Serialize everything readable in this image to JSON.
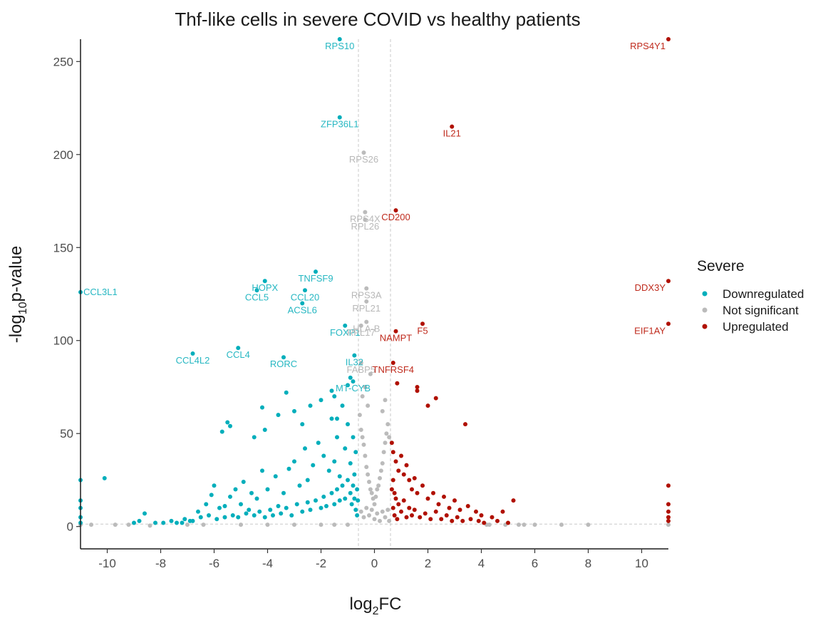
{
  "chart_data": {
    "type": "scatter",
    "title": "Thf-like cells in severe COVID vs healthy patients",
    "xlabel_base": "log",
    "xlabel_sub": "2",
    "xlabel_tail": "FC",
    "ylabel_head": "-log",
    "ylabel_sub": "10",
    "ylabel_tail": "p-value",
    "xlim": [
      -11,
      11
    ],
    "ylim": [
      -12,
      262
    ],
    "x_ticks": [
      -10,
      -8,
      -6,
      -4,
      -2,
      0,
      2,
      4,
      6,
      8,
      10
    ],
    "y_ticks": [
      0,
      50,
      100,
      150,
      200,
      250
    ],
    "fc_threshold": [
      -0.6,
      0.6
    ],
    "p_threshold": 1.3,
    "legend": {
      "title": "Severe",
      "entries": [
        {
          "name": "Downregulated",
          "color": "#00aebb"
        },
        {
          "name": "Not significant",
          "color": "#bbbbbb"
        },
        {
          "name": "Upregulated",
          "color": "#b01000"
        }
      ]
    },
    "colors": {
      "Downregulated": "#00aebb",
      "Not significant": "#bbbbbb",
      "Upregulated": "#b01000",
      "down_label": "#26b7c2",
      "ns_label": "#b8b8b8",
      "up_label": "#bf2a1c"
    },
    "labeled_genes": [
      {
        "gene": "RPS10",
        "x": -1.3,
        "y": 262,
        "group": "Downregulated"
      },
      {
        "gene": "ZFP36L1",
        "x": -1.3,
        "y": 220,
        "group": "Downregulated"
      },
      {
        "gene": "TNFSF9",
        "x": -2.2,
        "y": 137,
        "group": "Downregulated"
      },
      {
        "gene": "CCL5",
        "x": -4.4,
        "y": 127,
        "group": "Downregulated"
      },
      {
        "gene": "CCL20",
        "x": -2.6,
        "y": 127,
        "group": "Downregulated"
      },
      {
        "gene": "HOPX",
        "x": -4.1,
        "y": 132,
        "group": "Downregulated"
      },
      {
        "gene": "CCL3L1",
        "x": -11,
        "y": 126,
        "group": "Downregulated"
      },
      {
        "gene": "ACSL6",
        "x": -2.7,
        "y": 120,
        "group": "Downregulated"
      },
      {
        "gene": "FOXP1",
        "x": -1.1,
        "y": 108,
        "group": "Downregulated"
      },
      {
        "gene": "CCL4",
        "x": -5.1,
        "y": 96,
        "group": "Downregulated"
      },
      {
        "gene": "CCL4L2",
        "x": -6.8,
        "y": 93,
        "group": "Downregulated"
      },
      {
        "gene": "IL32",
        "x": -0.75,
        "y": 92,
        "group": "Downregulated"
      },
      {
        "gene": "RORC",
        "x": -3.4,
        "y": 91,
        "group": "Downregulated"
      },
      {
        "gene": "MT-CYB",
        "x": -0.8,
        "y": 78,
        "group": "Downregulated"
      },
      {
        "gene": "RPS26",
        "x": -0.4,
        "y": 201,
        "group": "Not significant"
      },
      {
        "gene": "RPS4X",
        "x": -0.35,
        "y": 169,
        "group": "Not significant"
      },
      {
        "gene": "RPL26",
        "x": -0.35,
        "y": 165,
        "group": "Not significant"
      },
      {
        "gene": "RPS3A",
        "x": -0.3,
        "y": 128,
        "group": "Not significant"
      },
      {
        "gene": "RPL21",
        "x": -0.3,
        "y": 121,
        "group": "Not significant"
      },
      {
        "gene": "HLA-B",
        "x": -0.3,
        "y": 110,
        "group": "Not significant"
      },
      {
        "gene": "RPL17",
        "x": -0.5,
        "y": 108,
        "group": "Not significant"
      },
      {
        "gene": "FABP5",
        "x": -0.5,
        "y": 88,
        "group": "Not significant"
      },
      {
        "gene": "RPS4Y1",
        "x": 11,
        "y": 262,
        "group": "Upregulated"
      },
      {
        "gene": "IL21",
        "x": 2.9,
        "y": 215,
        "group": "Upregulated"
      },
      {
        "gene": "CD200",
        "x": 0.8,
        "y": 170,
        "group": "Upregulated"
      },
      {
        "gene": "DDX3Y",
        "x": 11,
        "y": 132,
        "group": "Upregulated"
      },
      {
        "gene": "F5",
        "x": 1.8,
        "y": 109,
        "group": "Upregulated"
      },
      {
        "gene": "EIF1AY",
        "x": 11,
        "y": 109,
        "group": "Upregulated"
      },
      {
        "gene": "NAMPT",
        "x": 0.8,
        "y": 105,
        "group": "Upregulated"
      },
      {
        "gene": "TNFRSF4",
        "x": 0.7,
        "y": 88,
        "group": "Upregulated"
      }
    ],
    "points": {
      "Downregulated": [
        [
          -11,
          14
        ],
        [
          -11,
          10
        ],
        [
          -11,
          5
        ],
        [
          -11,
          25
        ],
        [
          -10.1,
          26
        ],
        [
          -8.8,
          3
        ],
        [
          -8.6,
          7
        ],
        [
          -8.2,
          2
        ],
        [
          -7.6,
          3
        ],
        [
          -7.1,
          4
        ],
        [
          -6.8,
          3
        ],
        [
          -6.6,
          8
        ],
        [
          -6.3,
          12
        ],
        [
          -6.1,
          17
        ],
        [
          -6.0,
          22
        ],
        [
          -5.8,
          10
        ],
        [
          -5.6,
          11
        ],
        [
          -5.4,
          16
        ],
        [
          -5.2,
          20
        ],
        [
          -5.0,
          12
        ],
        [
          -4.9,
          24
        ],
        [
          -4.6,
          18
        ],
        [
          -4.4,
          15
        ],
        [
          -4.2,
          30
        ],
        [
          -4.0,
          20
        ],
        [
          -3.7,
          27
        ],
        [
          -3.4,
          18
        ],
        [
          -3.2,
          31
        ],
        [
          -3.0,
          35
        ],
        [
          -2.8,
          22
        ],
        [
          -2.6,
          42
        ],
        [
          -2.5,
          25
        ],
        [
          -2.3,
          33
        ],
        [
          -2.1,
          45
        ],
        [
          -1.9,
          38
        ],
        [
          -1.7,
          30
        ],
        [
          -1.6,
          58
        ],
        [
          -1.5,
          35
        ],
        [
          -1.4,
          48
        ],
        [
          -1.3,
          27
        ],
        [
          -1.2,
          65
        ],
        [
          -1.1,
          42
        ],
        [
          -1.0,
          55
        ],
        [
          -0.9,
          34
        ],
        [
          -0.8,
          48
        ],
        [
          -0.75,
          28
        ],
        [
          -0.7,
          40
        ],
        [
          -0.65,
          20
        ],
        [
          -5.7,
          51
        ],
        [
          -5.5,
          56
        ],
        [
          -5.4,
          54
        ],
        [
          -4.5,
          48
        ],
        [
          -4.2,
          64
        ],
        [
          -4.1,
          52
        ],
        [
          -3.6,
          60
        ],
        [
          -3.3,
          72
        ],
        [
          -3.0,
          62
        ],
        [
          -2.7,
          55
        ],
        [
          -2.4,
          65
        ],
        [
          -2.0,
          68
        ],
        [
          -1.6,
          73
        ],
        [
          -1.5,
          70
        ],
        [
          -1.4,
          58
        ],
        [
          -1.0,
          76
        ],
        [
          -0.9,
          80
        ],
        [
          -11,
          2
        ],
        [
          -9.0,
          2
        ],
        [
          -7.9,
          2
        ],
        [
          -7.4,
          2
        ],
        [
          -7.2,
          2
        ],
        [
          -6.9,
          3
        ],
        [
          -6.5,
          5
        ],
        [
          -6.2,
          6
        ],
        [
          -5.9,
          4
        ],
        [
          -5.6,
          5
        ],
        [
          -5.3,
          6
        ],
        [
          -5.1,
          5
        ],
        [
          -4.8,
          7
        ],
        [
          -4.7,
          9
        ],
        [
          -4.5,
          6
        ],
        [
          -4.3,
          8
        ],
        [
          -4.1,
          5
        ],
        [
          -3.9,
          9
        ],
        [
          -3.8,
          6
        ],
        [
          -3.6,
          11
        ],
        [
          -3.5,
          7
        ],
        [
          -3.3,
          10
        ],
        [
          -3.1,
          6
        ],
        [
          -2.9,
          12
        ],
        [
          -2.7,
          8
        ],
        [
          -2.5,
          13
        ],
        [
          -2.4,
          9
        ],
        [
          -2.2,
          14
        ],
        [
          -2.0,
          10
        ],
        [
          -1.9,
          16
        ],
        [
          -1.8,
          11
        ],
        [
          -1.6,
          18
        ],
        [
          -1.5,
          12
        ],
        [
          -1.4,
          20
        ],
        [
          -1.3,
          14
        ],
        [
          -1.2,
          22
        ],
        [
          -1.1,
          15
        ],
        [
          -1.0,
          25
        ],
        [
          -0.9,
          18
        ],
        [
          -0.85,
          12
        ],
        [
          -0.8,
          22
        ],
        [
          -0.75,
          15
        ],
        [
          -0.7,
          9
        ],
        [
          -0.65,
          6
        ],
        [
          -0.62,
          14
        ]
      ],
      "Not significant": [
        [
          -11,
          1
        ],
        [
          -10.6,
          1
        ],
        [
          -9.7,
          1
        ],
        [
          -9.2,
          1
        ],
        [
          -8.4,
          0.5
        ],
        [
          -7.0,
          1
        ],
        [
          -6.4,
          1
        ],
        [
          -5.0,
          1
        ],
        [
          -4.0,
          1
        ],
        [
          -3.0,
          1
        ],
        [
          -2.0,
          1
        ],
        [
          -1.5,
          1
        ],
        [
          -1.0,
          1
        ],
        [
          -0.55,
          60
        ],
        [
          -0.5,
          52
        ],
        [
          -0.45,
          48
        ],
        [
          -0.4,
          44
        ],
        [
          -0.35,
          38
        ],
        [
          -0.3,
          32
        ],
        [
          -0.25,
          28
        ],
        [
          -0.2,
          24
        ],
        [
          -0.15,
          20
        ],
        [
          -0.1,
          18
        ],
        [
          -0.05,
          15
        ],
        [
          0.0,
          12
        ],
        [
          0.05,
          16
        ],
        [
          0.1,
          20
        ],
        [
          0.15,
          22
        ],
        [
          0.2,
          26
        ],
        [
          0.25,
          30
        ],
        [
          0.3,
          34
        ],
        [
          0.35,
          40
        ],
        [
          0.4,
          45
        ],
        [
          0.45,
          50
        ],
        [
          0.5,
          55
        ],
        [
          0.55,
          48
        ],
        [
          -0.5,
          8
        ],
        [
          -0.4,
          5
        ],
        [
          -0.3,
          10
        ],
        [
          -0.2,
          6
        ],
        [
          -0.1,
          9
        ],
        [
          0.0,
          4
        ],
        [
          0.1,
          7
        ],
        [
          0.2,
          3
        ],
        [
          0.3,
          8
        ],
        [
          0.4,
          5
        ],
        [
          0.5,
          9
        ],
        [
          0.55,
          3
        ],
        [
          -0.45,
          70
        ],
        [
          -0.35,
          75
        ],
        [
          -0.25,
          65
        ],
        [
          0.3,
          62
        ],
        [
          0.4,
          68
        ],
        [
          -0.15,
          82
        ],
        [
          4.2,
          1
        ],
        [
          4.3,
          1
        ],
        [
          4.9,
          1
        ],
        [
          5.4,
          1
        ],
        [
          5.6,
          1
        ],
        [
          6.0,
          1
        ],
        [
          7.0,
          1
        ],
        [
          8.0,
          1
        ],
        [
          11,
          1
        ]
      ],
      "Upregulated": [
        [
          11,
          22
        ],
        [
          11,
          12
        ],
        [
          11,
          8
        ],
        [
          11,
          5
        ],
        [
          11,
          3
        ],
        [
          3.4,
          55
        ],
        [
          2.3,
          69
        ],
        [
          1.6,
          75
        ],
        [
          1.6,
          73
        ],
        [
          0.85,
          77
        ],
        [
          2.0,
          65
        ],
        [
          0.7,
          40
        ],
        [
          0.8,
          35
        ],
        [
          0.9,
          30
        ],
        [
          1.0,
          38
        ],
        [
          1.1,
          28
        ],
        [
          1.2,
          33
        ],
        [
          1.3,
          25
        ],
        [
          1.4,
          20
        ],
        [
          1.5,
          26
        ],
        [
          1.6,
          18
        ],
        [
          1.8,
          22
        ],
        [
          2.0,
          15
        ],
        [
          2.2,
          18
        ],
        [
          2.4,
          12
        ],
        [
          2.6,
          16
        ],
        [
          2.8,
          10
        ],
        [
          3.0,
          14
        ],
        [
          3.2,
          9
        ],
        [
          3.5,
          11
        ],
        [
          3.8,
          8
        ],
        [
          4.0,
          6
        ],
        [
          4.4,
          5
        ],
        [
          4.8,
          8
        ],
        [
          5.2,
          14
        ],
        [
          0.7,
          10
        ],
        [
          0.75,
          6
        ],
        [
          0.8,
          15
        ],
        [
          0.85,
          4
        ],
        [
          0.9,
          12
        ],
        [
          1.0,
          8
        ],
        [
          1.1,
          14
        ],
        [
          1.2,
          5
        ],
        [
          1.3,
          10
        ],
        [
          1.4,
          6
        ],
        [
          1.5,
          9
        ],
        [
          1.7,
          5
        ],
        [
          1.9,
          7
        ],
        [
          2.1,
          4
        ],
        [
          2.3,
          8
        ],
        [
          2.5,
          4
        ],
        [
          2.7,
          6
        ],
        [
          2.9,
          3
        ],
        [
          3.1,
          5
        ],
        [
          3.3,
          3
        ],
        [
          3.6,
          4
        ],
        [
          3.9,
          3
        ],
        [
          4.1,
          2
        ],
        [
          4.6,
          3
        ],
        [
          5.0,
          2
        ],
        [
          0.65,
          20
        ],
        [
          0.7,
          25
        ],
        [
          0.75,
          18
        ],
        [
          0.65,
          45
        ]
      ]
    }
  }
}
